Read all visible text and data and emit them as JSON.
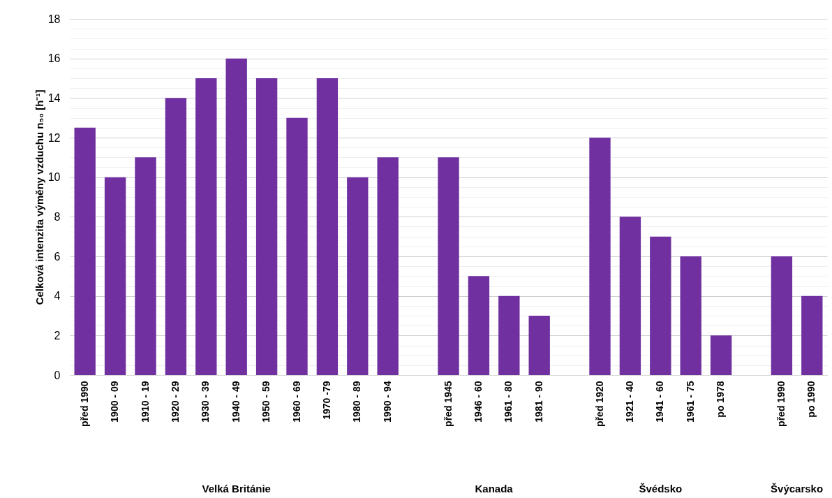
{
  "chart_data": {
    "type": "bar",
    "ylabel": "Celková intenzita výměny vzduchu n₅₀ [h⁻¹]",
    "categories": [
      "před 1990",
      "1900 - 09",
      "1910 - 19",
      "1920 - 29",
      "1930 - 39",
      "1940 - 49",
      "1950 - 59",
      "1960 - 69",
      "1970 -79",
      "1980 - 89",
      "1990 - 94",
      null,
      "před 1945",
      "1946 - 60",
      "1961 - 80",
      "1981 - 90",
      null,
      "před 1920",
      "1921 - 40",
      "1941 - 60",
      "1961 - 75",
      "po 1978",
      null,
      "před 1990",
      "po 1990"
    ],
    "values": [
      12.5,
      10,
      11,
      14,
      15,
      16,
      15,
      13,
      15,
      10,
      11,
      null,
      11,
      5,
      4,
      3,
      null,
      12,
      8,
      7,
      6,
      2,
      null,
      6,
      4
    ],
    "color": "#7030a0",
    "annotations": [
      "Velká Británie",
      "Kanada",
      "Švédsko",
      "Švýcarsko"
    ],
    "ylim": [
      0,
      18
    ],
    "yticks": [
      0,
      {
        "value": 0.5,
        "label": null
      },
      {
        "value": 1,
        "label": null
      },
      {
        "value": 1.5,
        "label": null
      },
      2,
      {
        "value": 2.5,
        "label": null
      },
      {
        "value": 3,
        "label": null
      },
      {
        "value": 3.5,
        "label": null
      },
      4,
      {
        "value": 4.5,
        "label": null
      },
      {
        "value": 5,
        "label": null
      },
      {
        "value": 5.5,
        "label": null
      },
      6,
      {
        "value": 6.5,
        "label": null
      },
      {
        "value": 7,
        "label": null
      },
      {
        "value": 7.5,
        "label": null
      },
      8,
      {
        "value": 8.5,
        "label": null
      },
      {
        "value": 9,
        "label": null
      },
      {
        "value": 9.5,
        "label": null
      },
      10,
      {
        "value": 10.5,
        "label": null
      },
      {
        "value": 11,
        "label": null
      },
      {
        "value": 11.5,
        "label": null
      },
      12,
      {
        "value": 12.5,
        "label": null
      },
      {
        "value": 13,
        "label": null
      },
      {
        "value": 13.5,
        "label": null
      },
      14,
      {
        "value": 14.5,
        "label": null
      },
      {
        "value": 15,
        "label": null
      },
      {
        "value": 15.5,
        "label": null
      },
      16,
      {
        "value": 16.5,
        "label": null
      },
      {
        "value": 17,
        "label": null
      },
      {
        "value": 17.5,
        "label": null
      },
      18
    ],
    "grid": "y"
  }
}
